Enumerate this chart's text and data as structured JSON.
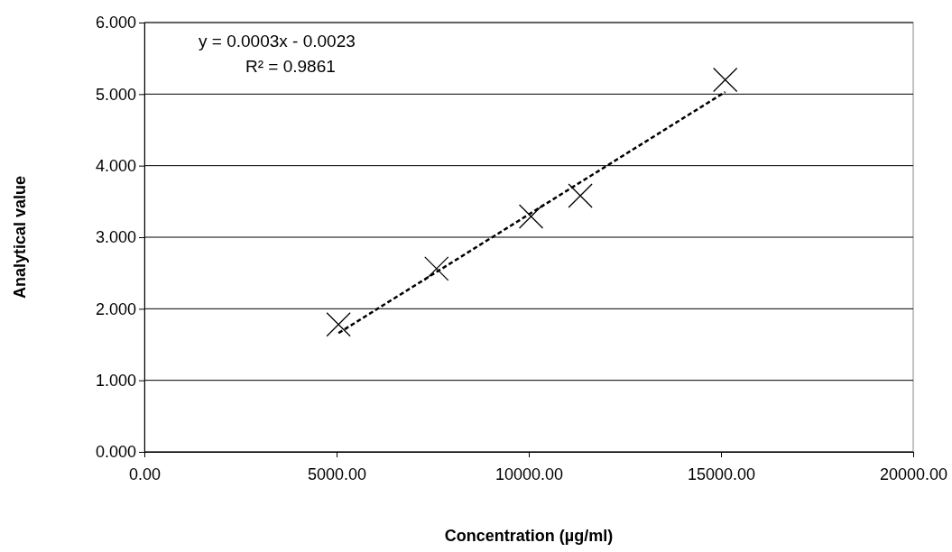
{
  "chart_data": {
    "type": "scatter",
    "xlabel": "Concentration (µg/ml)",
    "ylabel": "Analytical value",
    "annotations": [
      "y = 0.0003x - 0.0023",
      "R² = 0.9861"
    ],
    "x": [
      5050,
      7600,
      10060,
      11340,
      15110
    ],
    "series": [
      {
        "color": "#000000",
        "marker": "cross",
        "values": [
          1.78,
          2.56,
          3.29,
          3.58,
          5.2
        ]
      },
      {
        "type": "line",
        "color": "#000000",
        "line_style": "dashed",
        "marker": "none",
        "x": [
          5050,
          15110
        ],
        "values": [
          1.66,
          5.03
        ]
      }
    ],
    "xlim": [
      0,
      20000
    ],
    "xticks": [
      {
        "value": 0,
        "label": "0.00"
      },
      {
        "value": 5000,
        "label": "5000.00"
      },
      {
        "value": 10000,
        "label": "10000.00"
      },
      {
        "value": 15000,
        "label": "15000.00"
      },
      {
        "value": 20000,
        "label": "20000.00"
      }
    ],
    "ylim": [
      0,
      6
    ],
    "yticks": [
      {
        "value": 0,
        "label": "0.000"
      },
      {
        "value": 1,
        "label": "1.000"
      },
      {
        "value": 2,
        "label": "2.000"
      },
      {
        "value": 3,
        "label": "3.000"
      },
      {
        "value": 4,
        "label": "4.000"
      },
      {
        "value": 5,
        "label": "5.000"
      },
      {
        "value": 6,
        "label": "6.000"
      }
    ],
    "grid": "y"
  }
}
